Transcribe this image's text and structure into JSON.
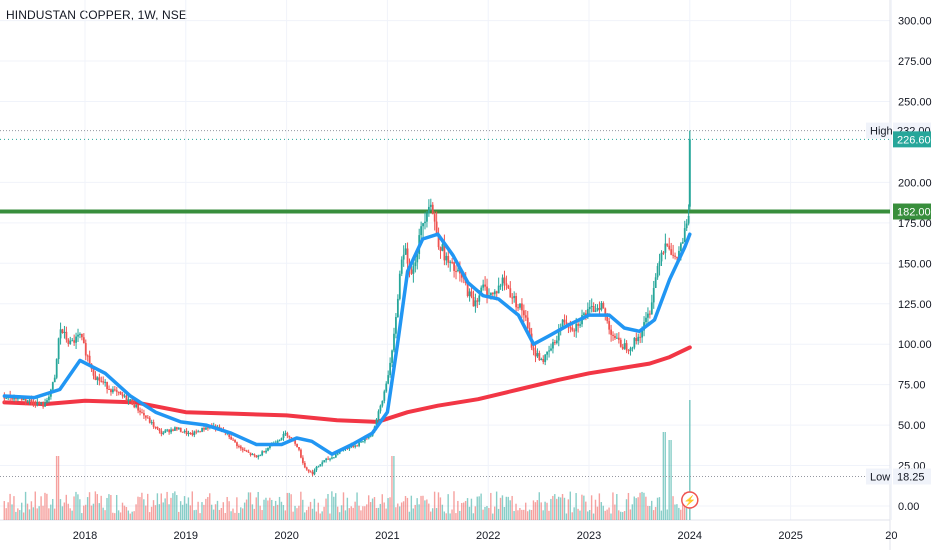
{
  "header": {
    "symbol": "HINDUSTAN COPPER",
    "interval": "1W",
    "exchange": "NSE",
    "separator": ", "
  },
  "colors": {
    "up": "#26a69a",
    "down": "#ef5350",
    "ma_fast": "#2196f3",
    "ma_slow": "#f23645",
    "support": "#388e3c",
    "grid": "#f0f3fa",
    "axis_text": "#131722",
    "high_low_line": "#9598a1"
  },
  "chart_data": {
    "type": "candlestick",
    "x_ticks": [
      "2018",
      "2019",
      "2020",
      "2021",
      "2022",
      "2023",
      "2024",
      "2025",
      "20"
    ],
    "y_ticks": [
      "300.00",
      "275.00",
      "250.00",
      "200.00",
      "175.00",
      "150.00",
      "125.00",
      "100.00",
      "75.00",
      "50.00",
      "25.00",
      "0.00"
    ],
    "ylim": [
      0,
      300
    ],
    "xlim": [
      2017.2,
      2026.0
    ],
    "price_labels": {
      "high_label": "High",
      "high_value": "232.00",
      "last_value": "226.60",
      "support_value": "182.00",
      "low_label": "Low",
      "low_value": "18.25"
    },
    "levels": {
      "high": 232.0,
      "last": 226.6,
      "support": 182.0,
      "low": 18.25
    },
    "price_path": [
      [
        2017.2,
        68
      ],
      [
        2017.4,
        66
      ],
      [
        2017.6,
        62
      ],
      [
        2017.7,
        78
      ],
      [
        2017.75,
        110
      ],
      [
        2017.85,
        100
      ],
      [
        2017.95,
        105
      ],
      [
        2018.1,
        80
      ],
      [
        2018.3,
        70
      ],
      [
        2018.45,
        65
      ],
      [
        2018.6,
        55
      ],
      [
        2018.75,
        45
      ],
      [
        2018.9,
        48
      ],
      [
        2019.05,
        44
      ],
      [
        2019.25,
        50
      ],
      [
        2019.4,
        45
      ],
      [
        2019.55,
        35
      ],
      [
        2019.7,
        30
      ],
      [
        2019.85,
        38
      ],
      [
        2020.0,
        45
      ],
      [
        2020.1,
        38
      ],
      [
        2020.18,
        24
      ],
      [
        2020.25,
        20
      ],
      [
        2020.35,
        27
      ],
      [
        2020.45,
        30
      ],
      [
        2020.55,
        35
      ],
      [
        2020.7,
        38
      ],
      [
        2020.85,
        45
      ],
      [
        2020.95,
        65
      ],
      [
        2021.05,
        95
      ],
      [
        2021.15,
        160
      ],
      [
        2021.25,
        145
      ],
      [
        2021.35,
        175
      ],
      [
        2021.42,
        190
      ],
      [
        2021.5,
        165
      ],
      [
        2021.6,
        150
      ],
      [
        2021.75,
        140
      ],
      [
        2021.85,
        125
      ],
      [
        2021.95,
        135
      ],
      [
        2022.05,
        130
      ],
      [
        2022.15,
        140
      ],
      [
        2022.25,
        128
      ],
      [
        2022.35,
        120
      ],
      [
        2022.45,
        95
      ],
      [
        2022.55,
        90
      ],
      [
        2022.65,
        100
      ],
      [
        2022.75,
        115
      ],
      [
        2022.85,
        110
      ],
      [
        2022.95,
        118
      ],
      [
        2023.05,
        122
      ],
      [
        2023.12,
        125
      ],
      [
        2023.2,
        110
      ],
      [
        2023.3,
        100
      ],
      [
        2023.4,
        98
      ],
      [
        2023.5,
        105
      ],
      [
        2023.6,
        120
      ],
      [
        2023.7,
        155
      ],
      [
        2023.78,
        165
      ],
      [
        2023.85,
        150
      ],
      [
        2023.92,
        162
      ],
      [
        2023.98,
        175
      ],
      [
        2024.0,
        190
      ]
    ],
    "spike": {
      "t": 2024.0,
      "open": 185,
      "high": 232.0,
      "low": 183,
      "close": 226.6
    },
    "volume": {
      "max_shown": 70,
      "spikes": [
        [
          2017.73,
          40
        ],
        [
          2021.05,
          40
        ],
        [
          2023.75,
          55
        ],
        [
          2023.8,
          50
        ],
        [
          2024.0,
          75
        ]
      ]
    },
    "series": [
      {
        "name": "",
        "role": "fast moving average",
        "x": [
          2017.2,
          2017.5,
          2017.75,
          2017.95,
          2018.2,
          2018.45,
          2018.7,
          2018.95,
          2019.2,
          2019.45,
          2019.7,
          2019.95,
          2020.1,
          2020.25,
          2020.45,
          2020.65,
          2020.85,
          2021.0,
          2021.1,
          2021.2,
          2021.35,
          2021.5,
          2021.65,
          2021.8,
          2021.95,
          2022.1,
          2022.3,
          2022.45,
          2022.6,
          2022.8,
          2023.0,
          2023.2,
          2023.35,
          2023.5,
          2023.65,
          2023.8,
          2023.95,
          2024.0
        ],
        "values": [
          68,
          67,
          72,
          90,
          82,
          68,
          58,
          52,
          50,
          45,
          38,
          38,
          42,
          40,
          32,
          38,
          45,
          58,
          100,
          145,
          165,
          168,
          155,
          138,
          130,
          128,
          118,
          100,
          105,
          112,
          118,
          118,
          110,
          108,
          115,
          140,
          160,
          168
        ]
      },
      {
        "name": "",
        "role": "slow moving average",
        "x": [
          2017.2,
          2017.6,
          2018.0,
          2018.5,
          2019.0,
          2019.5,
          2020.0,
          2020.5,
          2020.9,
          2021.2,
          2021.5,
          2021.9,
          2022.3,
          2022.7,
          2023.0,
          2023.3,
          2023.6,
          2023.8,
          2024.0
        ],
        "values": [
          64,
          63,
          65,
          64,
          58,
          57,
          56,
          53,
          52,
          58,
          62,
          66,
          72,
          78,
          82,
          85,
          88,
          92,
          98
        ]
      }
    ]
  }
}
